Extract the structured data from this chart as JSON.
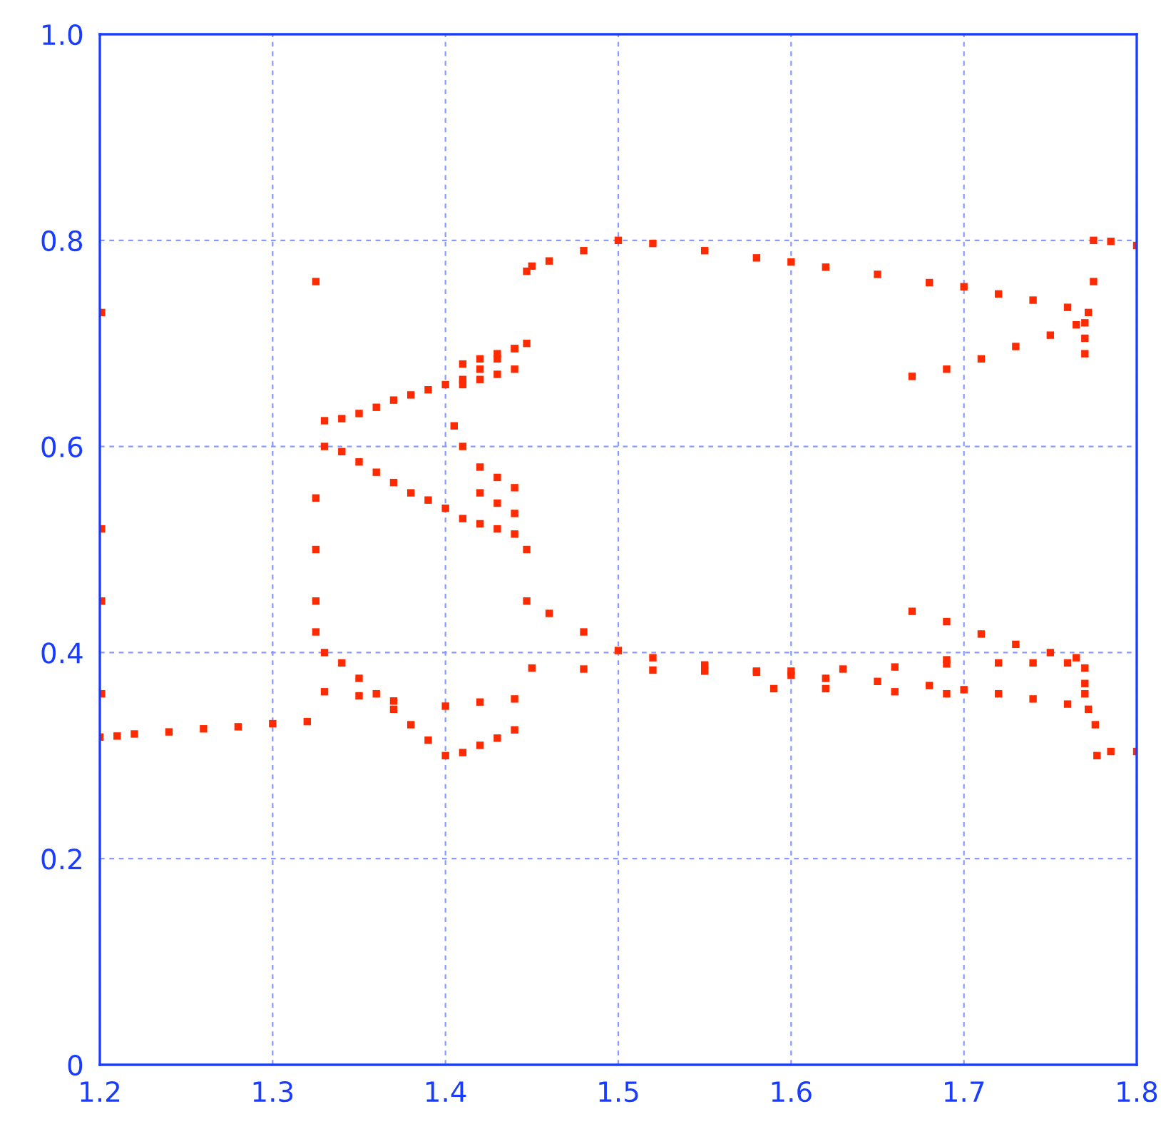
{
  "chart_data": {
    "type": "scatter",
    "x": [
      1.2,
      1.21,
      1.22,
      1.24,
      1.26,
      1.28,
      1.3,
      1.32,
      1.201,
      1.201,
      1.201,
      1.201,
      1.325,
      1.325,
      1.325,
      1.325,
      1.325,
      1.33,
      1.34,
      1.35,
      1.36,
      1.37,
      1.38,
      1.39,
      1.4,
      1.41,
      1.42,
      1.43,
      1.44,
      1.447,
      1.447,
      1.45,
      1.46,
      1.48,
      1.5,
      1.52,
      1.55,
      1.58,
      1.6,
      1.62,
      1.65,
      1.68,
      1.7,
      1.72,
      1.74,
      1.76,
      1.772,
      1.775,
      1.775,
      1.785,
      1.8,
      1.33,
      1.34,
      1.35,
      1.36,
      1.37,
      1.38,
      1.39,
      1.4,
      1.41,
      1.42,
      1.43,
      1.44,
      1.447,
      1.447,
      1.46,
      1.48,
      1.5,
      1.52,
      1.55,
      1.58,
      1.6,
      1.62,
      1.65,
      1.68,
      1.7,
      1.72,
      1.74,
      1.76,
      1.772,
      1.776,
      1.777,
      1.785,
      1.8,
      1.45,
      1.48,
      1.52,
      1.55,
      1.58,
      1.6,
      1.63,
      1.66,
      1.69,
      1.33,
      1.35,
      1.37,
      1.4,
      1.42,
      1.44,
      1.33,
      1.34,
      1.35,
      1.36,
      1.37,
      1.38,
      1.39,
      1.4,
      1.41,
      1.42,
      1.43,
      1.44,
      1.41,
      1.42,
      1.43,
      1.44,
      1.41,
      1.42,
      1.43,
      1.44,
      1.405,
      1.41,
      1.42,
      1.43,
      1.44,
      1.42,
      1.43,
      1.44,
      1.67,
      1.69,
      1.71,
      1.73,
      1.75,
      1.765,
      1.77,
      1.77,
      1.77,
      1.67,
      1.69,
      1.71,
      1.73,
      1.75,
      1.765,
      1.77,
      1.77,
      1.77,
      1.69,
      1.72,
      1.74,
      1.76,
      1.59,
      1.62,
      1.66,
      1.69
    ],
    "values": [
      0.318,
      0.319,
      0.321,
      0.323,
      0.326,
      0.328,
      0.331,
      0.333,
      0.73,
      0.52,
      0.45,
      0.36,
      0.76,
      0.55,
      0.5,
      0.45,
      0.42,
      0.625,
      0.627,
      0.632,
      0.638,
      0.645,
      0.65,
      0.655,
      0.66,
      0.665,
      0.675,
      0.685,
      0.695,
      0.7,
      0.77,
      0.775,
      0.78,
      0.79,
      0.8,
      0.797,
      0.79,
      0.783,
      0.779,
      0.774,
      0.767,
      0.759,
      0.755,
      0.748,
      0.742,
      0.735,
      0.73,
      0.76,
      0.8,
      0.799,
      0.795,
      0.6,
      0.595,
      0.585,
      0.575,
      0.565,
      0.555,
      0.548,
      0.54,
      0.53,
      0.525,
      0.52,
      0.515,
      0.5,
      0.45,
      0.438,
      0.42,
      0.402,
      0.395,
      0.388,
      0.382,
      0.378,
      0.375,
      0.372,
      0.368,
      0.364,
      0.36,
      0.355,
      0.35,
      0.345,
      0.33,
      0.3,
      0.304,
      0.304,
      0.385,
      0.384,
      0.383,
      0.382,
      0.381,
      0.382,
      0.384,
      0.386,
      0.389,
      0.362,
      0.358,
      0.353,
      0.348,
      0.352,
      0.355,
      0.4,
      0.39,
      0.375,
      0.36,
      0.345,
      0.33,
      0.315,
      0.3,
      0.303,
      0.31,
      0.317,
      0.325,
      0.68,
      0.685,
      0.69,
      0.695,
      0.66,
      0.665,
      0.67,
      0.675,
      0.62,
      0.6,
      0.58,
      0.57,
      0.56,
      0.555,
      0.545,
      0.535,
      0.668,
      0.675,
      0.685,
      0.697,
      0.708,
      0.718,
      0.72,
      0.705,
      0.69,
      0.44,
      0.43,
      0.418,
      0.408,
      0.4,
      0.395,
      0.385,
      0.37,
      0.36,
      0.393,
      0.39,
      0.39,
      0.39,
      0.365,
      0.365,
      0.362,
      0.36
    ],
    "color": "#ff2a00",
    "marker": "square",
    "xlim": [
      1.2,
      1.8
    ],
    "ylim": [
      0,
      1
    ],
    "xticks": [
      1.2,
      1.3,
      1.4,
      1.5,
      1.6,
      1.7,
      1.8
    ],
    "yticks": [
      0,
      0.2,
      0.4,
      0.6,
      0.8,
      {
        "value": 1,
        "label": "1.0"
      }
    ],
    "grid": true
  }
}
